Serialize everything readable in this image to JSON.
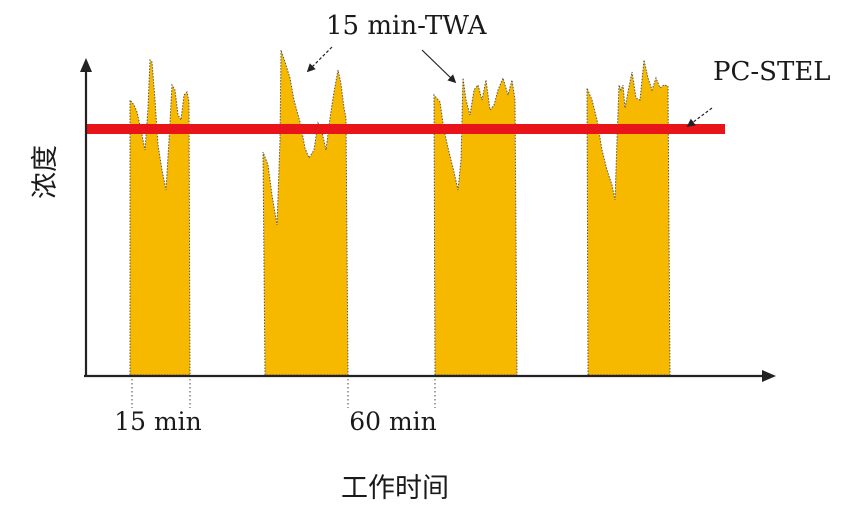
{
  "labels": {
    "ylabel": "浓度",
    "xlabel": "工作时间",
    "tick_15": "15 min",
    "tick_60": "60 min",
    "annotation_twa": "15 min-TWA",
    "annotation_stel": "PC-STEL"
  },
  "colors": {
    "fill": "#f7b900",
    "limit_line": "#e8141a",
    "axis": "#222222"
  }
}
